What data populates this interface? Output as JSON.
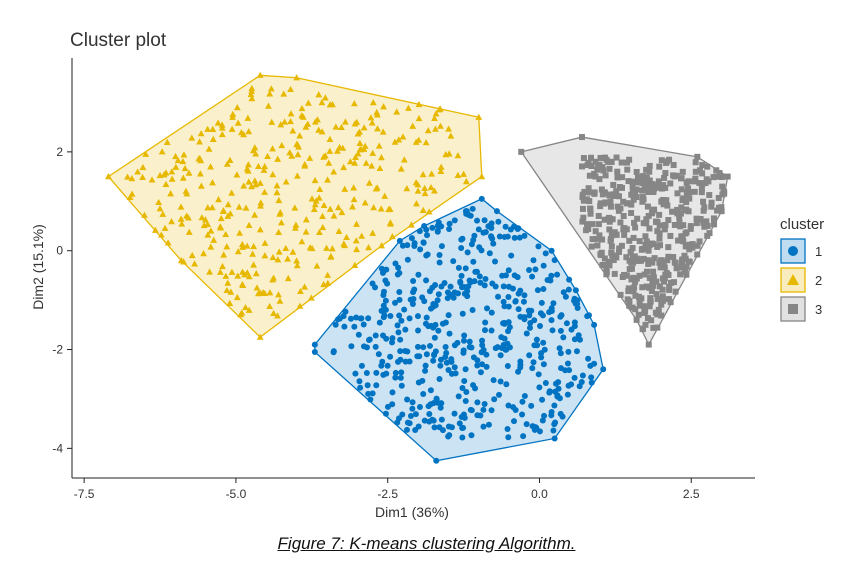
{
  "caption": "Figure 7: K-means clustering Algorithm.",
  "chart_data": {
    "type": "scatter",
    "title": "Cluster plot",
    "xlabel": "Dim1 (36%)",
    "ylabel": "Dim2 (15.1%)",
    "xlim": [
      -7.7,
      3.55
    ],
    "ylim": [
      -4.6,
      3.9
    ],
    "x_ticks": [
      -7.5,
      -5.0,
      -2.5,
      0.0,
      2.5
    ],
    "x_tick_labels": [
      "-7.5",
      "-5.0",
      "-2.5",
      "0.0",
      "2.5"
    ],
    "y_ticks": [
      -4,
      -2,
      0,
      2
    ],
    "y_tick_labels": [
      "-4",
      "-2",
      "0",
      "2"
    ],
    "grid": false,
    "legend": {
      "title": "cluster",
      "position": "right"
    },
    "hull_fill_opacity": 0.2,
    "series": [
      {
        "name": "2",
        "marker": "triangle",
        "color": "#E7B800",
        "region": {
          "x": [
            -6.9,
            -1.2
          ],
          "y": [
            -1.4,
            3.3
          ]
        },
        "n_points": 380,
        "seed": 7,
        "hull": [
          [
            -7.1,
            1.5
          ],
          [
            -4.6,
            3.55
          ],
          [
            -4.0,
            3.5
          ],
          [
            -1.0,
            2.7
          ],
          [
            -0.95,
            1.5
          ],
          [
            -2.6,
            0.1
          ],
          [
            -4.6,
            -1.75
          ],
          [
            -5.9,
            -0.2
          ]
        ]
      },
      {
        "name": "3",
        "marker": "square",
        "color": "#868686",
        "region": {
          "x": [
            0.7,
            3.1
          ],
          "y": [
            -1.6,
            1.9
          ]
        },
        "n_points": 450,
        "seed": 3,
        "hull": [
          [
            -0.3,
            2.0
          ],
          [
            0.7,
            2.3
          ],
          [
            2.6,
            1.9
          ],
          [
            3.1,
            1.5
          ],
          [
            3.0,
            0.8
          ],
          [
            1.8,
            -1.9
          ],
          [
            1.6,
            -1.4
          ]
        ]
      },
      {
        "name": "1",
        "marker": "circle",
        "color": "#0073C2",
        "region": {
          "x": [
            -3.4,
            0.9
          ],
          "y": [
            -3.8,
            1.0
          ]
        },
        "n_points": 520,
        "seed": 11,
        "hull": [
          [
            -1.7,
            -4.25
          ],
          [
            0.25,
            -3.8
          ],
          [
            1.05,
            -2.4
          ],
          [
            0.9,
            -1.5
          ],
          [
            0.6,
            -0.8
          ],
          [
            0.2,
            0.0
          ],
          [
            -0.7,
            0.8
          ],
          [
            -0.95,
            1.05
          ],
          [
            -1.9,
            0.5
          ],
          [
            -2.3,
            0.2
          ],
          [
            -3.7,
            -1.9
          ],
          [
            -3.7,
            -2.05
          ]
        ]
      }
    ]
  }
}
